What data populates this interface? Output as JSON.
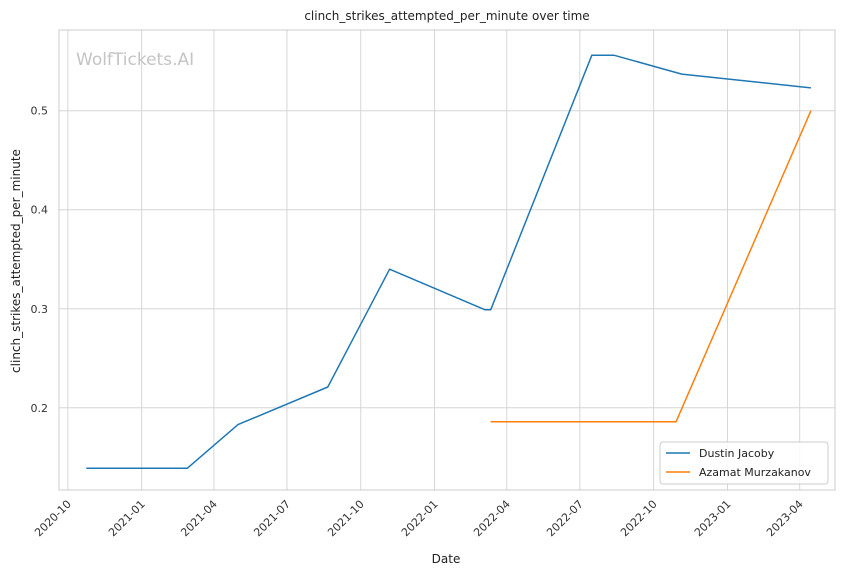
{
  "chart_data": {
    "type": "line",
    "title": "clinch_strikes_attempted_per_minute over time",
    "xlabel": "Date",
    "ylabel": "clinch_strikes_attempted_per_minute",
    "watermark": "WolfTickets.AI",
    "x_ticks": [
      "2020-10",
      "2021-01",
      "2021-04",
      "2021-07",
      "2021-10",
      "2022-01",
      "2022-04",
      "2022-07",
      "2022-10",
      "2023-01",
      "2023-04"
    ],
    "y_ticks": [
      "0.2",
      "0.3",
      "0.4",
      "0.5"
    ],
    "xlim": [
      "2020-09-20",
      "2023-05-15"
    ],
    "ylim": [
      0.117,
      0.5815
    ],
    "grid": true,
    "legend_position": "bottom-right",
    "series": [
      {
        "name": "Dustin Jacoby",
        "color": "#1f77b4",
        "points": [
          [
            "2020-10-24",
            0.139
          ],
          [
            "2021-02-27",
            0.139
          ],
          [
            "2021-05-01",
            0.183
          ],
          [
            "2021-08-21",
            0.221
          ],
          [
            "2021-11-06",
            0.34
          ],
          [
            "2022-03-05",
            0.299
          ],
          [
            "2022-03-12",
            0.299
          ],
          [
            "2022-07-16",
            0.556
          ],
          [
            "2022-08-13",
            0.556
          ],
          [
            "2022-11-05",
            0.537
          ],
          [
            "2023-04-15",
            0.523
          ]
        ]
      },
      {
        "name": "Azamat Murzakanov",
        "color": "#ff7f0e",
        "points": [
          [
            "2022-03-12",
            0.186
          ],
          [
            "2022-10-29",
            0.186
          ],
          [
            "2023-04-15",
            0.5
          ]
        ]
      }
    ]
  }
}
